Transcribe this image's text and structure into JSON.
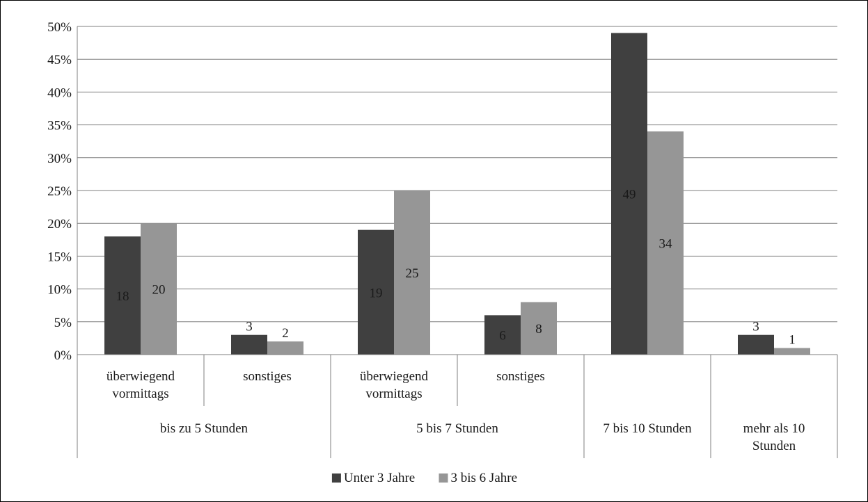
{
  "chart_data": {
    "type": "bar",
    "categories": [
      {
        "label": [
          "überwiegend",
          "vormittags"
        ],
        "group": 0
      },
      {
        "label": [
          "sonstiges"
        ],
        "group": 0
      },
      {
        "label": [
          "überwiegend",
          "vormittags"
        ],
        "group": 1
      },
      {
        "label": [
          "sonstiges"
        ],
        "group": 1
      },
      {
        "label": [],
        "group": 2
      },
      {
        "label": [],
        "group": 3
      }
    ],
    "groups": [
      {
        "label": [
          "bis zu 5 Stunden"
        ]
      },
      {
        "label": [
          "5 bis 7 Stunden"
        ]
      },
      {
        "label": [
          "7 bis 10 Stunden"
        ]
      },
      {
        "label": [
          "mehr als 10",
          "Stunden"
        ]
      }
    ],
    "series": [
      {
        "name": "Unter 3 Jahre",
        "color": "#404040",
        "values": [
          18,
          3,
          19,
          6,
          49,
          3
        ],
        "label_pos": [
          "inside",
          "above",
          "inside",
          "inside",
          "inside",
          "above"
        ]
      },
      {
        "name": "3 bis 6 Jahre",
        "color": "#969696",
        "values": [
          20,
          2,
          25,
          8,
          34,
          1
        ],
        "label_pos": [
          "inside",
          "above",
          "inside",
          "inside",
          "inside",
          "above"
        ]
      }
    ],
    "ylim": [
      0,
      50
    ],
    "y_ticks": [
      0,
      5,
      10,
      15,
      20,
      25,
      30,
      35,
      40,
      45,
      50
    ],
    "y_tick_suffix": "%",
    "grid": true,
    "legend_position": "bottom"
  }
}
